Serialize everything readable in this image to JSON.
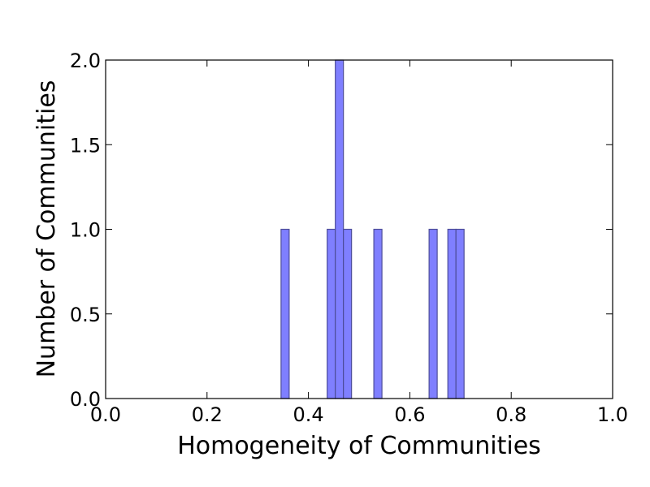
{
  "chart_data": {
    "type": "bar",
    "title": "",
    "xlabel": "Homogeneity of Communities",
    "ylabel": "Number of Communities",
    "xlim": [
      0.0,
      1.0
    ],
    "ylim": [
      0.0,
      2.0
    ],
    "x_ticks": [
      "0.0",
      "0.2",
      "0.4",
      "0.6",
      "0.8",
      "1.0"
    ],
    "y_ticks": [
      "0.0",
      "0.5",
      "1.0",
      "1.5",
      "2.0"
    ],
    "grid": false,
    "bar_color": "#7f7fff",
    "bar_edge_color": "#4d4d99",
    "bins": [
      {
        "x0": 0.346,
        "x1": 0.362,
        "count": 1
      },
      {
        "x0": 0.437,
        "x1": 0.453,
        "count": 1
      },
      {
        "x0": 0.453,
        "x1": 0.469,
        "count": 2
      },
      {
        "x0": 0.469,
        "x1": 0.485,
        "count": 1
      },
      {
        "x0": 0.529,
        "x1": 0.545,
        "count": 1
      },
      {
        "x0": 0.638,
        "x1": 0.654,
        "count": 1
      },
      {
        "x0": 0.675,
        "x1": 0.691,
        "count": 1
      },
      {
        "x0": 0.691,
        "x1": 0.707,
        "count": 1
      }
    ]
  }
}
